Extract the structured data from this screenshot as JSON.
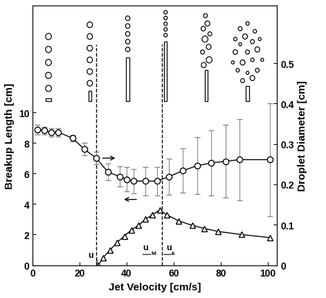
{
  "chart_data": {
    "type": "line",
    "x_label": "Jet Velocity [cm/s]",
    "y_label": "Breakup Length [cm]",
    "y2_label": "Droplet Diameter [cm]",
    "xlim": [
      0,
      104
    ],
    "xticks": [
      0,
      20,
      40,
      60,
      80,
      100
    ],
    "ylim": [
      0,
      17
    ],
    "yticks": [
      0,
      2,
      4,
      6,
      8,
      10
    ],
    "y2lim": [
      0,
      0.643
    ],
    "y2ticks": [
      0,
      0.1,
      0.2,
      0.3,
      0.4,
      0.5
    ],
    "series": [
      {
        "axis": "y",
        "marker": "triangle",
        "color": "#000000",
        "x": [
          28,
          30,
          33,
          36,
          39,
          42,
          45,
          48,
          51,
          54,
          57,
          62,
          68,
          73,
          79,
          89,
          101
        ],
        "values": [
          0.0,
          0.5,
          1.0,
          1.5,
          1.9,
          2.3,
          2.6,
          3.0,
          3.3,
          3.6,
          3.3,
          2.9,
          2.6,
          2.4,
          2.2,
          2.0,
          1.8
        ]
      },
      {
        "axis": "y2",
        "marker": "circle",
        "color": "#000000",
        "x": [
          2,
          5,
          8,
          11,
          17,
          22,
          27,
          32,
          37,
          40,
          43,
          48,
          53,
          58,
          64,
          70,
          76,
          82,
          88,
          101
        ],
        "values": [
          0.336,
          0.333,
          0.329,
          0.329,
          0.314,
          0.287,
          0.265,
          0.231,
          0.219,
          0.212,
          0.208,
          0.208,
          0.208,
          0.219,
          0.234,
          0.246,
          0.253,
          0.257,
          0.261,
          0.261
        ],
        "errors": [
          0.012,
          0.01,
          0.01,
          0.01,
          0.008,
          0.015,
          0.015,
          0.02,
          0.025,
          0.03,
          0.03,
          0.035,
          0.035,
          0.045,
          0.055,
          0.07,
          0.08,
          0.09,
          0.1,
          0.14
        ]
      }
    ],
    "markers": [
      {
        "label": "uj",
        "x": 27
      },
      {
        "label": "uM",
        "x": 51
      },
      {
        "label": "uk",
        "x": 55
      }
    ]
  }
}
